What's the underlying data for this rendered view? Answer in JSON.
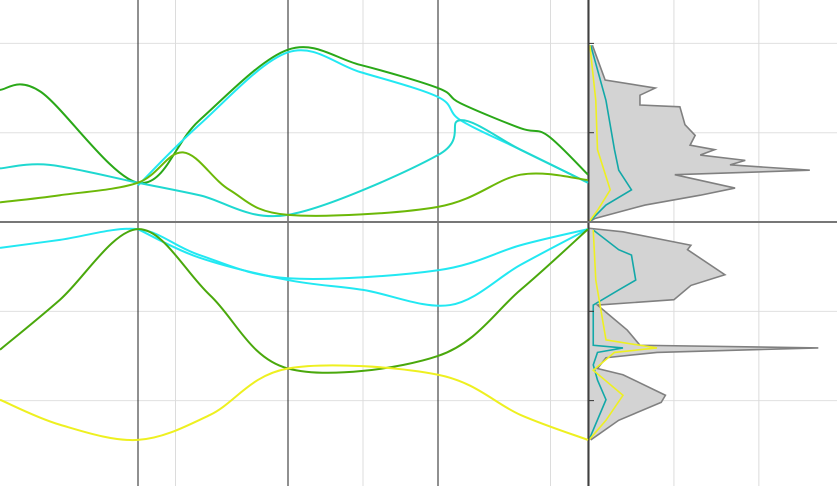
{
  "chart_data": [
    {
      "type": "line",
      "xlim": [
        -0.92,
        3.0
      ],
      "ylim": [
        -2.956,
        2.486
      ],
      "xticks": [
        0.25,
        1.5,
        2.75
      ],
      "yticks": [
        -2,
        -1,
        0,
        1,
        2
      ],
      "kpoints": [
        0,
        1,
        2,
        3
      ],
      "grid": true,
      "series": [
        {
          "color": "#22e8f2",
          "x": [
            -0.92,
            -0.52,
            0,
            0.41,
            1,
            2,
            2.55,
            3
          ],
          "values": [
            -0.29,
            -0.2,
            -0.08,
            -0.37,
            -0.63,
            -0.54,
            -0.26,
            -0.08
          ]
        },
        {
          "color": "#22e8f2",
          "x": [
            0,
            0.41,
            1,
            1.5,
            2.08,
            2.55,
            3
          ],
          "values": [
            -0.08,
            -0.4,
            -0.65,
            -0.76,
            -0.93,
            -0.48,
            -0.08
          ]
        },
        {
          "color": "#4aa80c",
          "x": [
            -0.92,
            -0.52,
            0,
            0.48,
            1,
            2,
            2.55,
            3
          ],
          "values": [
            -1.43,
            -0.87,
            -0.08,
            -0.82,
            -1.64,
            -1.5,
            -0.76,
            -0.08
          ]
        },
        {
          "color": "#eef020",
          "x": [
            -0.92,
            -0.52,
            0,
            0.48,
            1,
            2,
            2.55,
            3
          ],
          "values": [
            -1.99,
            -2.27,
            -2.44,
            -2.16,
            -1.64,
            -1.71,
            -2.16,
            -2.44
          ]
        },
        {
          "color": "#2aa818",
          "x": [
            -0.92,
            -0.65,
            0,
            0.41,
            1,
            1.48,
            2,
            2.15,
            2.55,
            2.73,
            3
          ],
          "values": [
            1.48,
            1.46,
            0.44,
            1.14,
            1.93,
            1.76,
            1.5,
            1.33,
            1.05,
            0.97,
            0.53
          ]
        },
        {
          "color": "#22e8f2",
          "x": [
            0,
            0.41,
            1,
            1.48,
            2,
            2.15,
            2.55,
            3
          ],
          "values": [
            0.41,
            1.09,
            1.9,
            1.68,
            1.4,
            1.14,
            0.81,
            0.44
          ]
        },
        {
          "color": "#1fd8d0",
          "x": [
            -0.92,
            -0.59,
            0,
            0.41,
            1,
            2,
            2.15,
            2.55,
            3
          ],
          "values": [
            0.6,
            0.64,
            0.44,
            0.3,
            0.08,
            0.75,
            1.14,
            0.81,
            0.44
          ]
        },
        {
          "color": "#6cb808",
          "x": [
            -0.92,
            -0.52,
            0,
            0.3,
            0.61,
            1,
            2,
            2.55,
            3
          ],
          "values": [
            0.22,
            0.3,
            0.44,
            0.78,
            0.36,
            0.08,
            0.17,
            0.53,
            0.47
          ]
        }
      ]
    },
    {
      "type": "area",
      "xlim": [
        0,
        2.92
      ],
      "ylim": [
        -2.956,
        2.486
      ],
      "xticks": [
        1,
        2
      ],
      "yticks": [
        -2,
        -1,
        0,
        1,
        2
      ],
      "grid": true,
      "series": [
        {
          "color": "#d3d3d3",
          "edge": "#808080",
          "energy": [
            1.98,
            1.59,
            1.5,
            1.42,
            1.31,
            1.29,
            1.09,
            0.97,
            0.86,
            0.81,
            0.75,
            0.69,
            0.64,
            0.58,
            0.53,
            0.38,
            0.3,
            0.19,
            0.04,
            0,
            null,
            -0.07,
            -0.11,
            -0.26,
            -0.31,
            -0.59,
            -0.71,
            -0.87,
            -0.93,
            -1.01,
            -1.21,
            -1.38,
            -1.41,
            -1.46,
            -1.52,
            -1.64,
            -1.71,
            -1.94,
            -2.02,
            -2.22,
            -2.44
          ],
          "values": [
            0.04,
            0.19,
            0.78,
            0.6,
            0.6,
            1.07,
            1.13,
            1.25,
            1.19,
            1.48,
            1.31,
            1.84,
            1.66,
            2.6,
            1.01,
            1.72,
            1.31,
            0.66,
            0.07,
            0,
            null,
            0,
            0.4,
            1.2,
            1.16,
            1.6,
            1.2,
            1.0,
            0.1,
            0.2,
            0.45,
            0.6,
            2.7,
            0.8,
            0.2,
            0.1,
            0.4,
            0.9,
            0.85,
            0.35,
            0.02
          ]
        },
        {
          "color": "#12a8a8",
          "energy": [
            1.98,
            1.36,
            0.81,
            0.58,
            0.36,
            0.19,
            0,
            null,
            -0.09,
            -0.31,
            -0.37,
            -0.65,
            -0.76,
            -0.93,
            -1.38,
            -1.41,
            -1.46,
            -1.6,
            -1.77,
            -1.99,
            -2.44
          ],
          "values": [
            0.02,
            0.2,
            0.3,
            0.35,
            0.5,
            0.2,
            0,
            null,
            0.05,
            0.35,
            0.5,
            0.55,
            0.35,
            0.05,
            0.05,
            0.4,
            0.1,
            0.05,
            0.1,
            0.2,
            0
          ]
        },
        {
          "color": "#eef020",
          "energy": [
            1.98,
            1.36,
            0.81,
            0.36,
            0.13,
            0,
            null,
            -0.09,
            -0.65,
            -1.32,
            -1.41,
            -1.46,
            -1.66,
            -1.94,
            -2.22,
            -2.44
          ],
          "values": [
            0.01,
            0.08,
            0.1,
            0.25,
            0.1,
            0,
            null,
            0.05,
            0.08,
            0.2,
            0.8,
            0.3,
            0.05,
            0.4,
            0.2,
            0
          ]
        }
      ]
    }
  ]
}
